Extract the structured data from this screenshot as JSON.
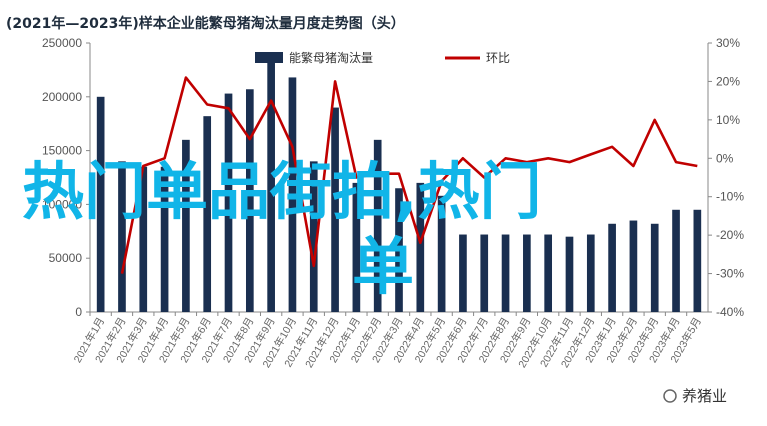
{
  "title": "(2021年—2023年)样本企业能繁母猪淘汰量月度走势图（头）",
  "overlay_text": [
    "热门单品街拍,热门",
    "单"
  ],
  "watermark": "养猪业",
  "colors": {
    "bars": "#1a2f50",
    "line": "#c00000",
    "overlay": "#11b5e8",
    "axis": "#888888"
  },
  "chart_data": {
    "type": "bar",
    "categories": [
      "2021年1月",
      "2021年2月",
      "2021年3月",
      "2021年4月",
      "2021年5月",
      "2021年6月",
      "2021年7月",
      "2021年8月",
      "2021年9月",
      "2021年10月",
      "2021年11月",
      "2021年12月",
      "2022年1月",
      "2022年2月",
      "2022年3月",
      "2022年4月",
      "2022年5月",
      "2022年6月",
      "2022年7月",
      "2022年8月",
      "2022年9月",
      "2022年10月",
      "2022年11月",
      "2022年12月",
      "2023年1月",
      "2023年2月",
      "2023年3月",
      "2023年4月",
      "2023年5月"
    ],
    "series": [
      {
        "name": "能繁母猪淘汰量",
        "type": "bar",
        "axis": "left",
        "values": [
          200000,
          140000,
          135000,
          135000,
          160000,
          182000,
          203000,
          207000,
          233000,
          218000,
          140000,
          190000,
          120000,
          160000,
          115000,
          120000,
          108000,
          72000,
          72000,
          72000,
          72000,
          72000,
          70000,
          72000,
          82000,
          85000,
          82000,
          95000,
          95000
        ]
      },
      {
        "name": "环比",
        "type": "line",
        "axis": "right",
        "values": [
          null,
          -30,
          -2,
          0,
          21,
          14,
          13,
          5,
          15,
          3,
          -28,
          20,
          -5,
          -4,
          -4,
          -22,
          -6,
          0,
          -5,
          0,
          -1,
          0,
          -1,
          1,
          3,
          -2,
          10,
          -1,
          -2
        ]
      }
    ],
    "ylim_left": [
      0,
      250000
    ],
    "yticks_left": [
      "0",
      "50000",
      "100000",
      "150000",
      "200000",
      "250000"
    ],
    "ylim_right": [
      -40,
      30
    ],
    "yticks_right": [
      "-40%",
      "-30%",
      "-20%",
      "-10%",
      "0%",
      "10%",
      "20%",
      "30%"
    ],
    "legend": "top-center",
    "grid": false
  }
}
